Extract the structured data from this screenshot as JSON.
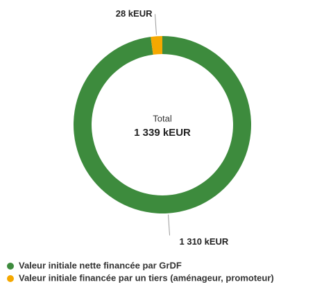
{
  "chart_data": {
    "type": "donut",
    "categories": [
      "Valeur initiale nette financée par GrDF",
      "Valeur initiale financée par un tiers (aménageur, promoteur)"
    ],
    "values": [
      1310,
      28
    ],
    "value_labels": [
      "1 310 kEUR",
      "28 kEUR"
    ],
    "colors": [
      "#3d8b3d",
      "#f5a800"
    ],
    "center_label": "Total",
    "center_value_label": "1 339 kEUR",
    "legend": "bottom-left"
  }
}
